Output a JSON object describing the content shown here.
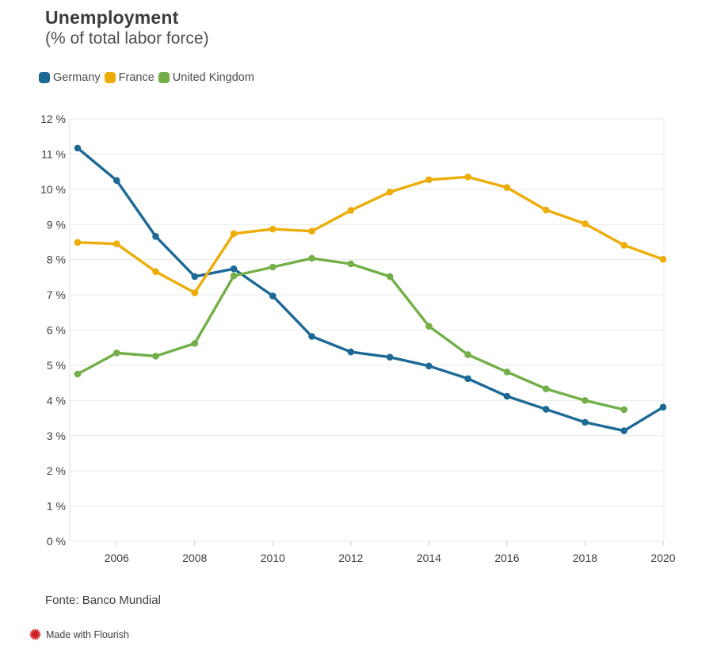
{
  "chart_data": {
    "type": "line",
    "title": "Unemployment",
    "subtitle": "(% of total labor force)",
    "x": [
      2005,
      2006,
      2007,
      2008,
      2009,
      2010,
      2011,
      2012,
      2013,
      2014,
      2015,
      2016,
      2017,
      2018,
      2019,
      2020
    ],
    "series": [
      {
        "name": "Germany",
        "color": "#1D6996",
        "values": [
          11.17,
          10.25,
          8.66,
          7.52,
          7.74,
          6.97,
          5.82,
          5.38,
          5.23,
          4.98,
          4.62,
          4.12,
          3.75,
          3.38,
          3.14,
          3.81
        ]
      },
      {
        "name": "France",
        "color": "#EDAD08",
        "values": [
          8.49,
          8.45,
          7.66,
          7.06,
          8.74,
          8.87,
          8.81,
          9.4,
          9.92,
          10.27,
          10.35,
          10.05,
          9.41,
          9.02,
          8.41,
          8.01
        ]
      },
      {
        "name": "United Kingdom",
        "color": "#73AF48",
        "values": [
          4.75,
          5.35,
          5.26,
          5.62,
          7.54,
          7.79,
          8.04,
          7.88,
          7.52,
          6.11,
          5.3,
          4.81,
          4.33,
          4.0,
          3.74,
          null
        ]
      }
    ],
    "ylim": [
      0,
      12
    ],
    "y_ticks": [
      {
        "value": 0,
        "label": "0 %"
      },
      {
        "value": 1,
        "label": "1 %"
      },
      {
        "value": 2,
        "label": "2 %"
      },
      {
        "value": 3,
        "label": "3 %"
      },
      {
        "value": 4,
        "label": "4 %"
      },
      {
        "value": 5,
        "label": "5 %"
      },
      {
        "value": 6,
        "label": "6 %"
      },
      {
        "value": 7,
        "label": "7 %"
      },
      {
        "value": 8,
        "label": "8 %"
      },
      {
        "value": 9,
        "label": "9 %"
      },
      {
        "value": 10,
        "label": "10 %"
      },
      {
        "value": 11,
        "label": "11 %"
      },
      {
        "value": 12,
        "label": "12 %"
      }
    ],
    "x_ticks": [
      2006,
      2008,
      2010,
      2012,
      2014,
      2016,
      2018,
      2020
    ],
    "grid": "horizontal",
    "legend_position": "top-left",
    "xlabel": "",
    "ylabel": ""
  },
  "footer": {
    "source": "Fonte: Banco Mundial",
    "attribution": "Made with Flourish"
  },
  "colors": {
    "grid_line": "#e9e9e9",
    "axis_line": "#e2e2e2",
    "tick_mark": "#cccccc",
    "tick_label": "#3d3d3d",
    "flourish_red": "#CE2026"
  }
}
